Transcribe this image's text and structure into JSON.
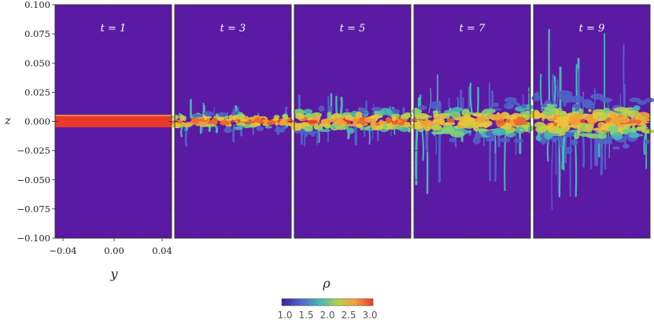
{
  "figure": {
    "panel_labels": [
      "t = 1",
      "t = 3",
      "t = 5",
      "t = 7",
      "t = 9"
    ],
    "z_axis": {
      "label": "z",
      "ticks": [
        "0.100",
        "0.075",
        "0.050",
        "0.025",
        "0.000",
        "−0.025",
        "−0.050",
        "−0.075",
        "−0.100"
      ]
    },
    "y_axis": {
      "label": "y",
      "ticks": [
        "−0.04",
        "0.00",
        "0.04"
      ]
    },
    "colorbar": {
      "label": "ρ",
      "ticks": [
        "1.0",
        "1.5",
        "2.0",
        "2.5",
        "3.0"
      ],
      "colormap": "rainbow",
      "stops": [
        "#3b1fa0",
        "#4f63c8",
        "#49b7b3",
        "#b8d04c",
        "#f2a23a",
        "#ea3a2c"
      ]
    },
    "colors": {
      "background_density": "#5b1aa4",
      "panel_border": "#333333"
    }
  }
}
